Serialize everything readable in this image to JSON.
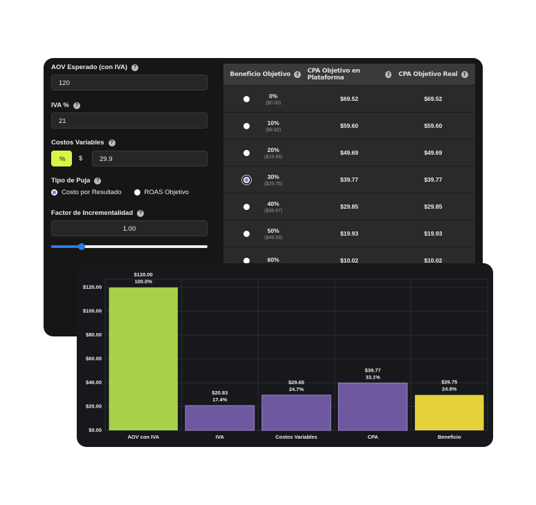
{
  "form": {
    "help": "?",
    "aov_label": "AOV Esperado (con IVA)",
    "aov_value": "120",
    "iva_label": "IVA %",
    "iva_value": "21",
    "costos_label": "Costos Variables",
    "unit_percent": "%",
    "unit_dollar": "$",
    "costos_value": "29.9",
    "puja_label": "Tipo de Puja",
    "puja_options": [
      "Costo por Resultado",
      "ROAS Objetivo"
    ],
    "factor_label": "Factor de Incrementalidad",
    "factor_value": "1.00"
  },
  "table": {
    "headers": [
      "Beneficio Objetivo",
      "CPA Objetivo en Plataforma",
      "CPA Objetivo Real"
    ],
    "rows": [
      [
        "0%",
        "($0.00)",
        "$69.52",
        "$69.52"
      ],
      [
        "10%",
        "($9.92)",
        "$59.60",
        "$59.60"
      ],
      [
        "20%",
        "($19.83)",
        "$49.69",
        "$49.69"
      ],
      [
        "30%",
        "($29.75)",
        "$39.77",
        "$39.77"
      ],
      [
        "40%",
        "($39.67)",
        "$29.85",
        "$29.85"
      ],
      [
        "50%",
        "($49.59)",
        "$19.93",
        "$19.93"
      ],
      [
        "60%",
        "",
        "$10.02",
        "$10.02"
      ]
    ]
  },
  "chart_data": {
    "type": "bar",
    "categories": [
      "AOV con IVA",
      "IVA",
      "Costos Variables",
      "CPA",
      "Beneficio"
    ],
    "values": [
      120,
      20.83,
      29.65,
      39.77,
      29.75
    ],
    "value_labels": [
      "$120.00",
      "$20.83",
      "$29.65",
      "$39.77",
      "$29.75"
    ],
    "share_labels": [
      "100.0%",
      "17.4%",
      "24.7%",
      "33.1%",
      "24.8%"
    ],
    "colors": [
      "#a8d04a",
      "#6e58a0",
      "#6e58a0",
      "#6e58a0",
      "#e6d33b"
    ],
    "ylim": [
      0,
      127
    ],
    "yticks": [
      {
        "value": 0,
        "label": "$0.00"
      },
      {
        "value": 20,
        "label": "$20.00"
      },
      {
        "value": 40,
        "label": "$40.00"
      },
      {
        "value": 60,
        "label": "$60.00"
      },
      {
        "value": 80,
        "label": "$80.00"
      },
      {
        "value": 100,
        "label": "$100.00"
      },
      {
        "value": 120,
        "label": "$120.00"
      }
    ],
    "grid": true
  }
}
